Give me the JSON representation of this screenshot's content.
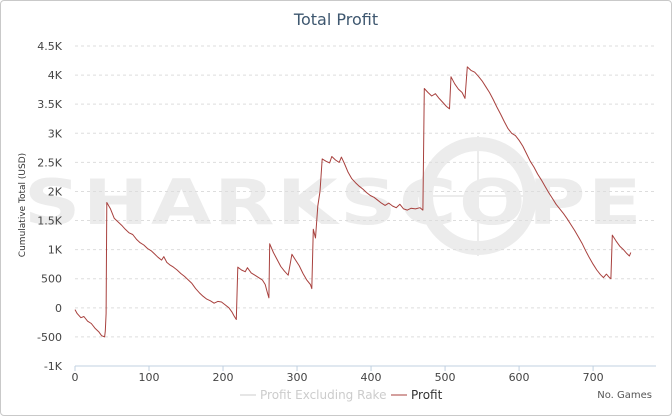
{
  "chart_data": {
    "type": "line",
    "title": "Total Profit",
    "xlabel": "",
    "ylabel": "Cumulative Total (USD)",
    "corner_label": "No. Games",
    "watermark": "SHARKSCOPE",
    "xlim": [
      0,
      785
    ],
    "ylim": [
      -1000,
      4500
    ],
    "x_ticks": [
      0,
      100,
      200,
      300,
      400,
      500,
      600,
      700
    ],
    "y_ticks": [
      -1000,
      -500,
      0,
      500,
      1000,
      1500,
      2000,
      2500,
      3000,
      3500,
      4000,
      4500
    ],
    "y_tick_labels": [
      "-1K",
      "-500",
      "0",
      "500",
      "1K",
      "1.5K",
      "2K",
      "2.5K",
      "3K",
      "3.5K",
      "4K",
      "4.5K"
    ],
    "grid": "horizontal-dashed",
    "legend_position": "bottom-center",
    "series": [
      {
        "name": "Profit Excluding Rake",
        "color": "#cccccc",
        "visible": false,
        "points": []
      },
      {
        "name": "Profit",
        "color": "#a8413e",
        "visible": true,
        "points": [
          [
            0,
            -30
          ],
          [
            3,
            -100
          ],
          [
            8,
            -170
          ],
          [
            12,
            -150
          ],
          [
            17,
            -230
          ],
          [
            22,
            -270
          ],
          [
            27,
            -350
          ],
          [
            32,
            -410
          ],
          [
            36,
            -480
          ],
          [
            40,
            -500
          ],
          [
            41,
            -400
          ],
          [
            42,
            -100
          ],
          [
            43,
            1810
          ],
          [
            48,
            1700
          ],
          [
            53,
            1540
          ],
          [
            58,
            1480
          ],
          [
            63,
            1420
          ],
          [
            68,
            1350
          ],
          [
            73,
            1290
          ],
          [
            78,
            1260
          ],
          [
            83,
            1180
          ],
          [
            88,
            1120
          ],
          [
            93,
            1080
          ],
          [
            98,
            1020
          ],
          [
            103,
            980
          ],
          [
            108,
            920
          ],
          [
            112,
            870
          ],
          [
            117,
            820
          ],
          [
            120,
            880
          ],
          [
            124,
            780
          ],
          [
            128,
            740
          ],
          [
            133,
            700
          ],
          [
            138,
            650
          ],
          [
            143,
            590
          ],
          [
            148,
            540
          ],
          [
            153,
            480
          ],
          [
            158,
            420
          ],
          [
            163,
            330
          ],
          [
            168,
            260
          ],
          [
            173,
            200
          ],
          [
            178,
            150
          ],
          [
            183,
            120
          ],
          [
            188,
            80
          ],
          [
            193,
            110
          ],
          [
            198,
            100
          ],
          [
            203,
            50
          ],
          [
            208,
            0
          ],
          [
            212,
            -70
          ],
          [
            215,
            -140
          ],
          [
            218,
            -200
          ],
          [
            220,
            700
          ],
          [
            225,
            650
          ],
          [
            230,
            620
          ],
          [
            233,
            690
          ],
          [
            238,
            600
          ],
          [
            243,
            560
          ],
          [
            248,
            520
          ],
          [
            253,
            480
          ],
          [
            257,
            400
          ],
          [
            260,
            260
          ],
          [
            262,
            170
          ],
          [
            263,
            1100
          ],
          [
            268,
            950
          ],
          [
            273,
            830
          ],
          [
            278,
            710
          ],
          [
            283,
            630
          ],
          [
            288,
            560
          ],
          [
            293,
            920
          ],
          [
            298,
            820
          ],
          [
            303,
            720
          ],
          [
            308,
            590
          ],
          [
            313,
            480
          ],
          [
            318,
            400
          ],
          [
            320,
            330
          ],
          [
            322,
            1350
          ],
          [
            325,
            1200
          ],
          [
            328,
            1750
          ],
          [
            331,
            2000
          ],
          [
            334,
            2560
          ],
          [
            339,
            2520
          ],
          [
            344,
            2490
          ],
          [
            347,
            2600
          ],
          [
            352,
            2540
          ],
          [
            357,
            2500
          ],
          [
            360,
            2590
          ],
          [
            364,
            2480
          ],
          [
            369,
            2330
          ],
          [
            374,
            2220
          ],
          [
            379,
            2150
          ],
          [
            384,
            2090
          ],
          [
            389,
            2040
          ],
          [
            394,
            1980
          ],
          [
            399,
            1930
          ],
          [
            404,
            1900
          ],
          [
            409,
            1850
          ],
          [
            414,
            1800
          ],
          [
            419,
            1760
          ],
          [
            424,
            1800
          ],
          [
            429,
            1750
          ],
          [
            434,
            1720
          ],
          [
            439,
            1780
          ],
          [
            444,
            1700
          ],
          [
            449,
            1680
          ],
          [
            454,
            1710
          ],
          [
            460,
            1700
          ],
          [
            466,
            1720
          ],
          [
            470,
            1680
          ],
          [
            472,
            3770
          ],
          [
            477,
            3700
          ],
          [
            482,
            3640
          ],
          [
            487,
            3680
          ],
          [
            492,
            3600
          ],
          [
            497,
            3530
          ],
          [
            502,
            3460
          ],
          [
            506,
            3420
          ],
          [
            508,
            3970
          ],
          [
            513,
            3850
          ],
          [
            518,
            3760
          ],
          [
            523,
            3700
          ],
          [
            527,
            3600
          ],
          [
            530,
            4140
          ],
          [
            535,
            4080
          ],
          [
            540,
            4050
          ],
          [
            545,
            3980
          ],
          [
            550,
            3900
          ],
          [
            555,
            3800
          ],
          [
            560,
            3700
          ],
          [
            565,
            3580
          ],
          [
            570,
            3450
          ],
          [
            575,
            3330
          ],
          [
            580,
            3200
          ],
          [
            585,
            3080
          ],
          [
            590,
            3000
          ],
          [
            595,
            2960
          ],
          [
            600,
            2880
          ],
          [
            605,
            2780
          ],
          [
            610,
            2650
          ],
          [
            615,
            2520
          ],
          [
            620,
            2420
          ],
          [
            625,
            2300
          ],
          [
            630,
            2200
          ],
          [
            635,
            2090
          ],
          [
            640,
            1980
          ],
          [
            645,
            1880
          ],
          [
            650,
            1780
          ],
          [
            655,
            1700
          ],
          [
            660,
            1620
          ],
          [
            665,
            1530
          ],
          [
            670,
            1430
          ],
          [
            675,
            1330
          ],
          [
            680,
            1220
          ],
          [
            685,
            1110
          ],
          [
            690,
            980
          ],
          [
            695,
            860
          ],
          [
            700,
            750
          ],
          [
            705,
            650
          ],
          [
            710,
            570
          ],
          [
            714,
            520
          ],
          [
            718,
            580
          ],
          [
            722,
            520
          ],
          [
            724,
            500
          ],
          [
            726,
            1250
          ],
          [
            731,
            1150
          ],
          [
            736,
            1060
          ],
          [
            741,
            1000
          ],
          [
            745,
            940
          ],
          [
            749,
            890
          ],
          [
            751,
            950
          ]
        ]
      }
    ]
  }
}
